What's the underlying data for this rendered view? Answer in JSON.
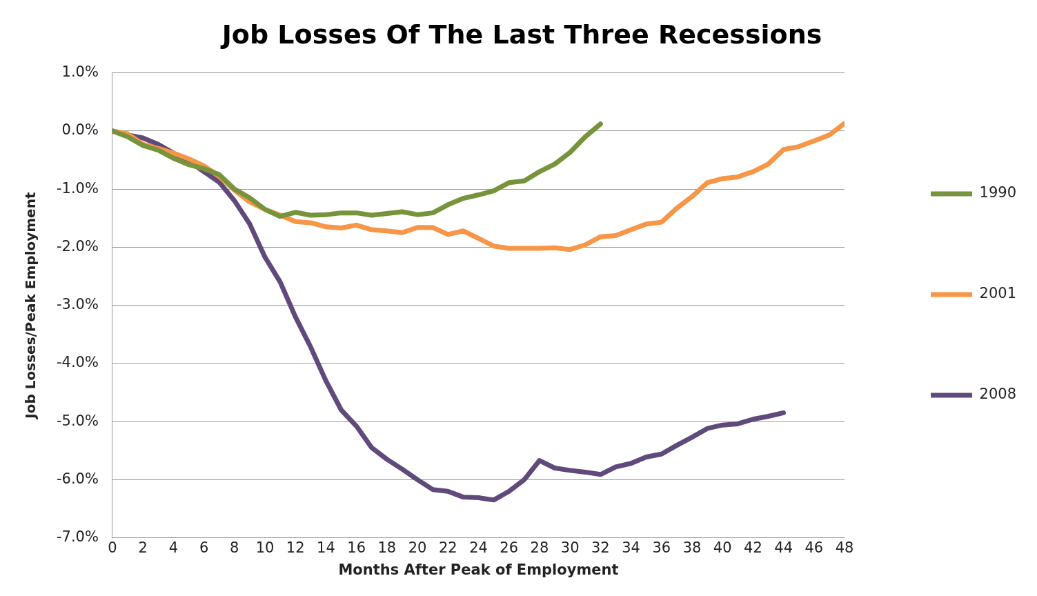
{
  "chart_data": {
    "type": "line",
    "title": "Job Losses Of The Last Three Recessions",
    "xlabel": "Months After Peak of Employment",
    "ylabel": "Job Losses/Peak Employment",
    "x": [
      0,
      1,
      2,
      3,
      4,
      5,
      6,
      7,
      8,
      9,
      10,
      11,
      12,
      13,
      14,
      15,
      16,
      17,
      18,
      19,
      20,
      21,
      22,
      23,
      24,
      25,
      26,
      27,
      28,
      29,
      30,
      31,
      32,
      33,
      34,
      35,
      36,
      37,
      38,
      39,
      40,
      41,
      42,
      43,
      44,
      45,
      46,
      47,
      48
    ],
    "series": [
      {
        "name": "1990",
        "color": "#77933c",
        "values": [
          0,
          -0.1,
          -0.25,
          -0.33,
          -0.47,
          -0.58,
          -0.65,
          -0.75,
          -1.0,
          -1.15,
          -1.35,
          -1.47,
          -1.4,
          -1.45,
          -1.44,
          -1.41,
          -1.41,
          -1.45,
          -1.42,
          -1.39,
          -1.44,
          -1.41,
          -1.27,
          -1.16,
          -1.1,
          -1.03,
          -0.89,
          -0.86,
          -0.7,
          -0.57,
          -0.37,
          -0.1,
          0.12,
          null,
          null,
          null,
          null,
          null,
          null,
          null,
          null,
          null,
          null,
          null,
          null,
          null,
          null,
          null,
          null
        ]
      },
      {
        "name": "2001",
        "color": "#f79646",
        "values": [
          0,
          -0.05,
          -0.23,
          -0.3,
          -0.38,
          -0.48,
          -0.6,
          -0.78,
          -1.02,
          -1.22,
          -1.35,
          -1.45,
          -1.56,
          -1.58,
          -1.65,
          -1.67,
          -1.62,
          -1.7,
          -1.72,
          -1.75,
          -1.66,
          -1.66,
          -1.78,
          -1.72,
          -1.85,
          -1.98,
          -2.02,
          -2.02,
          -2.02,
          -2.01,
          -2.04,
          -1.96,
          -1.82,
          -1.8,
          -1.7,
          -1.6,
          -1.57,
          -1.33,
          -1.13,
          -0.89,
          -0.82,
          -0.79,
          -0.7,
          -0.57,
          -0.32,
          -0.27,
          -0.17,
          -0.07,
          0.13
        ]
      },
      {
        "name": "2008",
        "color": "#604a7b",
        "values": [
          0,
          -0.07,
          -0.12,
          -0.23,
          -0.38,
          -0.52,
          -0.7,
          -0.88,
          -1.2,
          -1.6,
          -2.17,
          -2.6,
          -3.2,
          -3.72,
          -4.3,
          -4.8,
          -5.08,
          -5.45,
          -5.65,
          -5.82,
          -6.0,
          -6.17,
          -6.2,
          -6.3,
          -6.31,
          -6.35,
          -6.2,
          -6.0,
          -5.67,
          -5.8,
          -5.84,
          -5.87,
          -5.91,
          -5.78,
          -5.72,
          -5.61,
          -5.56,
          -5.41,
          -5.27,
          -5.12,
          -5.06,
          -5.04,
          -4.96,
          -4.91,
          -4.85,
          null,
          null,
          null,
          null
        ]
      }
    ],
    "xlim": [
      0,
      48
    ],
    "xticks": [
      0,
      2,
      4,
      6,
      8,
      10,
      12,
      14,
      16,
      18,
      20,
      22,
      24,
      26,
      28,
      30,
      32,
      34,
      36,
      38,
      40,
      42,
      44,
      46,
      48
    ],
    "ylim": [
      -7,
      1
    ],
    "yticks": [
      {
        "value": 1,
        "label": "1.0%"
      },
      {
        "value": 0,
        "label": "0.0%"
      },
      {
        "value": -1,
        "label": "-1.0%"
      },
      {
        "value": -2,
        "label": "-2.0%"
      },
      {
        "value": -3,
        "label": "-3.0%"
      },
      {
        "value": -4,
        "label": "-4.0%"
      },
      {
        "value": -5,
        "label": "-5.0%"
      },
      {
        "value": -6,
        "label": "-6.0%"
      },
      {
        "value": -7,
        "label": "-7.0%"
      }
    ],
    "grid": "y",
    "legend": "right",
    "marker": "none",
    "line_style": "solid"
  }
}
